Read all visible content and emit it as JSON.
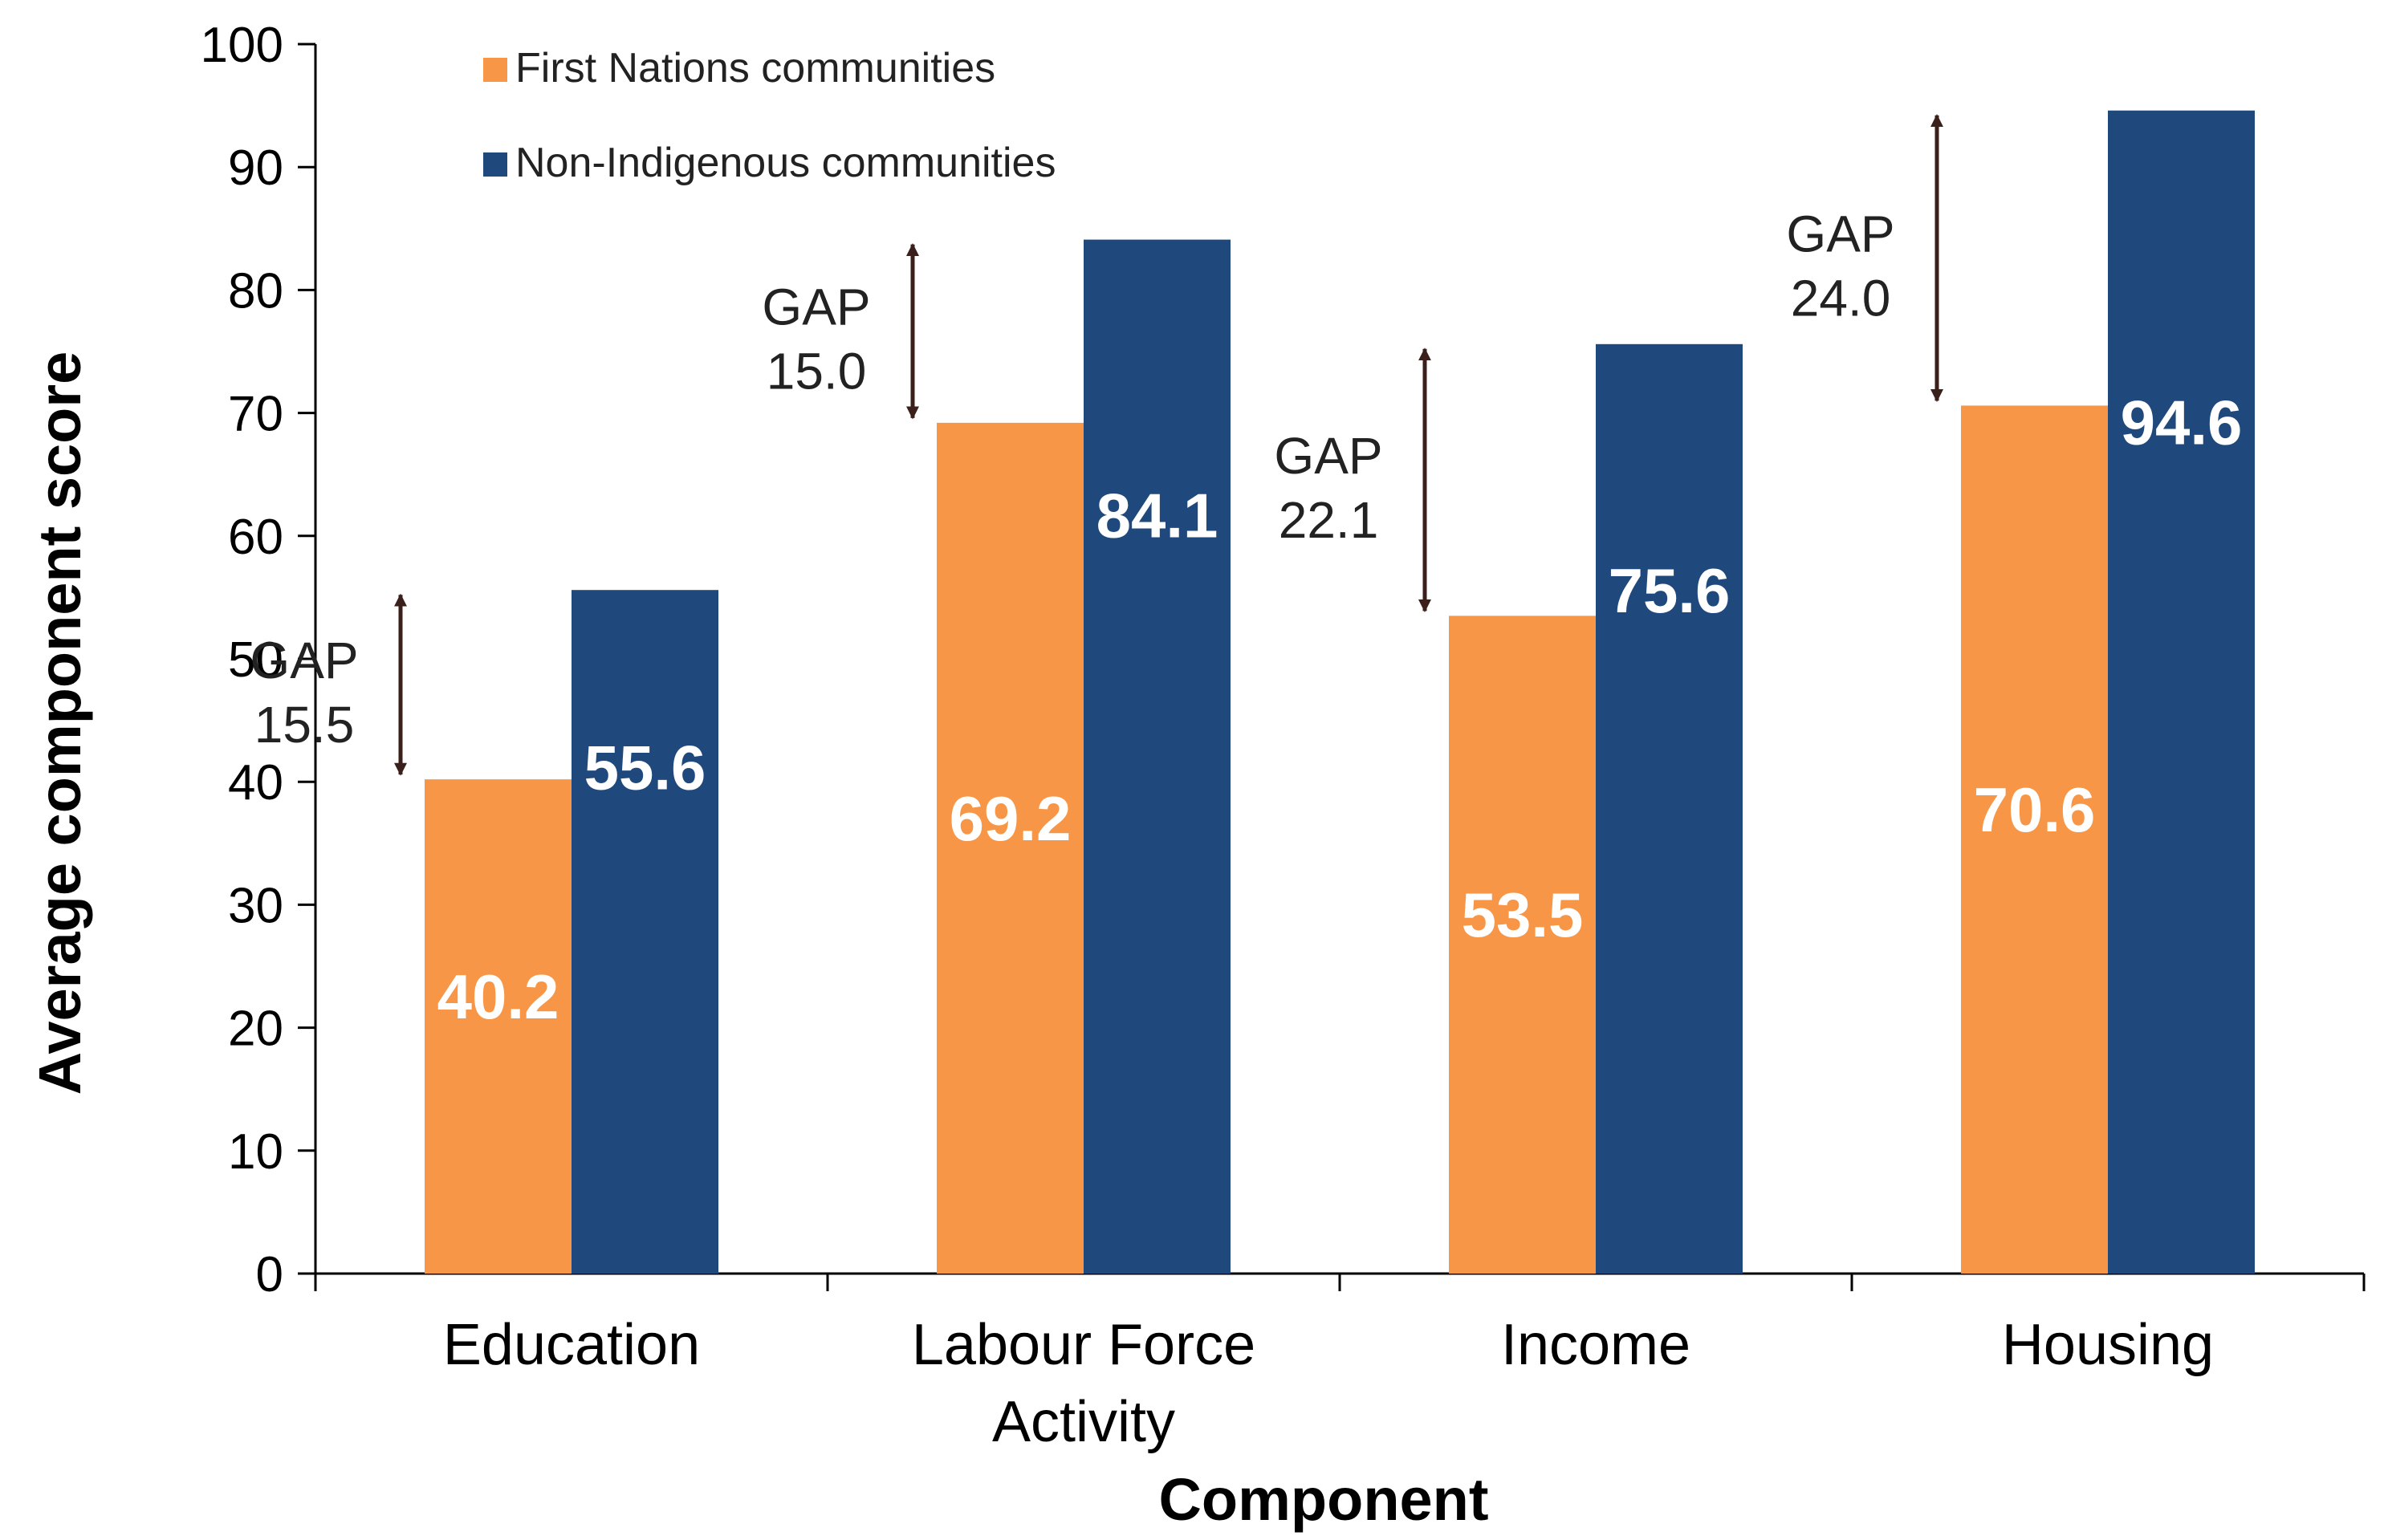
{
  "chart_data": {
    "type": "bar",
    "title": "",
    "xlabel": "Component",
    "ylabel": "Average component score",
    "ylim": [
      0,
      100
    ],
    "yticks": [
      0,
      10,
      20,
      30,
      40,
      50,
      60,
      70,
      80,
      90,
      100
    ],
    "categories": [
      "Education",
      "Labour Force Activity",
      "Income",
      "Housing"
    ],
    "category_lines": [
      [
        "Education"
      ],
      [
        "Labour Force",
        "Activity"
      ],
      [
        "Income"
      ],
      [
        "Housing"
      ]
    ],
    "series": [
      {
        "name": "First Nations communities",
        "color": "#F79646",
        "values": [
          40.2,
          69.2,
          53.5,
          70.6
        ],
        "labels": [
          "40.2",
          "69.2",
          "53.5",
          "70.6"
        ]
      },
      {
        "name": "Non-Indigenous communities",
        "color": "#1F497D",
        "values": [
          55.6,
          84.1,
          75.6,
          94.6
        ],
        "labels": [
          "55.6",
          "84.1",
          "75.6",
          "94.6"
        ]
      }
    ],
    "gaps": [
      {
        "label": "GAP",
        "value": "15.5"
      },
      {
        "label": "GAP",
        "value": "15.0"
      },
      {
        "label": "GAP",
        "value": "22.1"
      },
      {
        "label": "GAP",
        "value": "24.0"
      }
    ],
    "legend_position": "top-left",
    "grid": false,
    "arrow_color": "#3A1F1A"
  }
}
